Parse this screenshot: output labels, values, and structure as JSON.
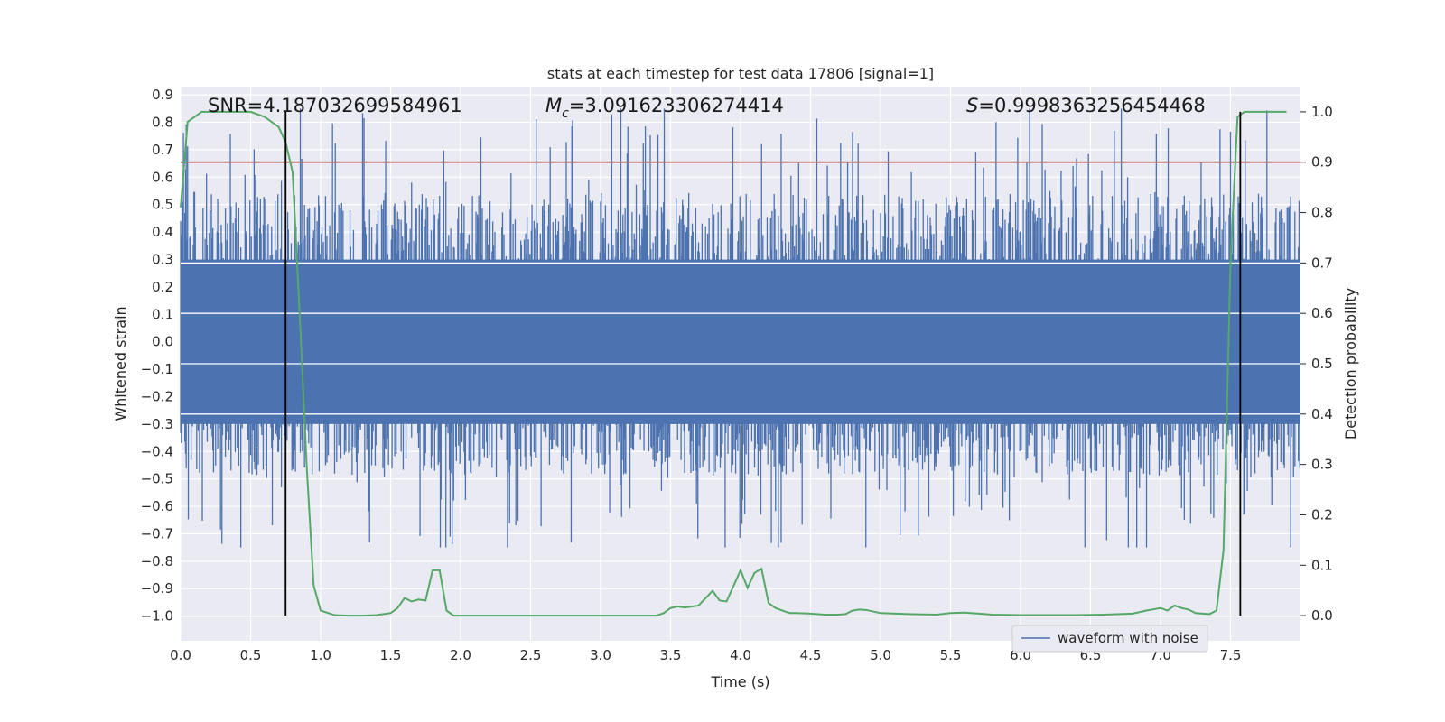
{
  "chart_data": {
    "type": "line",
    "title": "stats at each timestep for test data 17806 [signal=1]",
    "xlabel": "Time (s)",
    "ylabel_left": "Whitened strain",
    "ylabel_right": "Detection probability",
    "xlim": [
      0.0,
      8.0
    ],
    "ylim_left": [
      -1.09,
      0.93
    ],
    "ylim_right": [
      -0.05,
      1.05
    ],
    "x_ticks": [
      "0.0",
      "0.5",
      "1.0",
      "1.5",
      "2.0",
      "2.5",
      "3.0",
      "3.5",
      "4.0",
      "4.5",
      "5.0",
      "5.5",
      "6.0",
      "6.5",
      "7.0",
      "7.5"
    ],
    "y_left_ticks": [
      "0.9",
      "0.8",
      "0.7",
      "0.6",
      "0.5",
      "0.4",
      "0.3",
      "0.2",
      "0.1",
      "0.0",
      "−0.1",
      "−0.2",
      "−0.3",
      "−0.4",
      "−0.5",
      "−0.6",
      "−0.7",
      "−0.8",
      "−0.9",
      "−1.0"
    ],
    "y_right_ticks": [
      "1.0",
      "0.9",
      "0.8",
      "0.7",
      "0.6",
      "0.5",
      "0.4",
      "0.3",
      "0.2",
      "0.1",
      "0.0"
    ],
    "annotations": {
      "snr": "SNR=4.187032699584961",
      "mc_symbol": "M",
      "mc_sub": "c",
      "mc_value": "=3.091623306274414",
      "s_symbol": "S",
      "s_value": "=0.9998363256454468"
    },
    "threshold": {
      "value": 0.9,
      "axis": "right",
      "color": "#c44e52"
    },
    "vertical_markers": [
      0.75,
      7.57
    ],
    "waveform": {
      "name": "waveform with noise",
      "color": "#4c72b0",
      "duration": 8.0,
      "samples": 1600,
      "core_amplitude": 0.3,
      "peak_min": -0.75,
      "peak_max": 0.85
    },
    "probability": {
      "color": "#55a868",
      "x": [
        0.0,
        0.05,
        0.1,
        0.15,
        0.2,
        0.3,
        0.4,
        0.5,
        0.6,
        0.7,
        0.75,
        0.8,
        0.85,
        0.9,
        0.95,
        1.0,
        1.1,
        1.2,
        1.3,
        1.4,
        1.5,
        1.55,
        1.6,
        1.65,
        1.7,
        1.75,
        1.8,
        1.85,
        1.9,
        1.95,
        2.0,
        2.05,
        2.2,
        2.4,
        2.6,
        2.8,
        3.0,
        3.2,
        3.4,
        3.45,
        3.5,
        3.55,
        3.6,
        3.7,
        3.8,
        3.85,
        3.9,
        4.0,
        4.05,
        4.1,
        4.15,
        4.2,
        4.25,
        4.3,
        4.35,
        4.4,
        4.5,
        4.6,
        4.7,
        4.75,
        4.8,
        4.85,
        4.9,
        5.0,
        5.2,
        5.4,
        5.5,
        5.6,
        5.8,
        6.0,
        6.2,
        6.4,
        6.6,
        6.8,
        6.9,
        7.0,
        7.05,
        7.1,
        7.15,
        7.2,
        7.25,
        7.3,
        7.35,
        7.4,
        7.45,
        7.5,
        7.55,
        7.6,
        7.65,
        7.7,
        7.8,
        7.9
      ],
      "y": [
        0.81,
        0.98,
        0.99,
        1.0,
        1.0,
        1.0,
        1.0,
        1.0,
        0.99,
        0.97,
        0.94,
        0.88,
        0.6,
        0.3,
        0.06,
        0.01,
        0.001,
        0.0,
        0.0,
        0.001,
        0.005,
        0.015,
        0.035,
        0.028,
        0.032,
        0.03,
        0.09,
        0.09,
        0.01,
        0.0,
        0.0,
        0.0,
        0.0,
        0.0,
        0.0,
        0.0,
        0.0,
        0.0,
        0.0,
        0.005,
        0.015,
        0.018,
        0.016,
        0.02,
        0.049,
        0.03,
        0.028,
        0.09,
        0.055,
        0.085,
        0.093,
        0.025,
        0.015,
        0.01,
        0.005,
        0.005,
        0.004,
        0.002,
        0.002,
        0.003,
        0.01,
        0.012,
        0.011,
        0.005,
        0.003,
        0.002,
        0.005,
        0.006,
        0.002,
        0.001,
        0.001,
        0.001,
        0.002,
        0.004,
        0.01,
        0.015,
        0.01,
        0.02,
        0.015,
        0.012,
        0.005,
        0.004,
        0.003,
        0.01,
        0.13,
        0.7,
        0.99,
        1.0,
        1.0,
        1.0,
        1.0,
        1.0
      ]
    },
    "legend": {
      "label": "waveform with noise",
      "position": "lower-right"
    }
  }
}
